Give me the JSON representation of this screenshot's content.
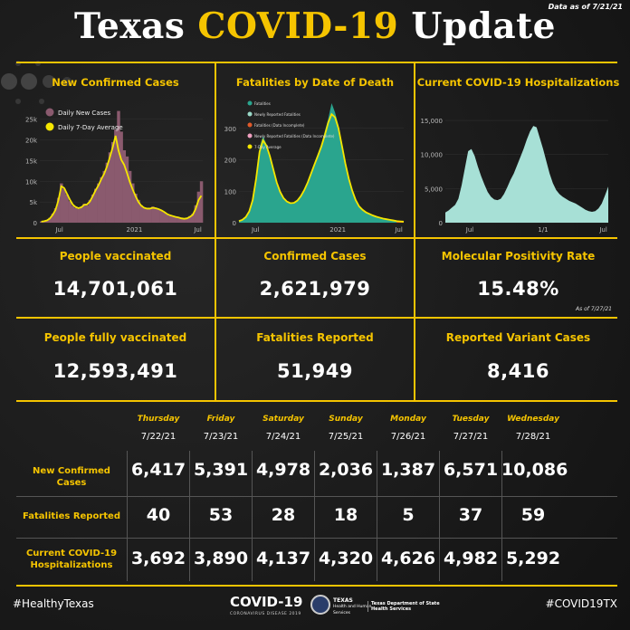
{
  "header": {
    "title_part1": "Texas",
    "title_part2": "COVID-19",
    "title_part3": "Update",
    "data_as_of": "Data as of 7/21/21"
  },
  "charts": [
    {
      "title": "New Confirmed Cases",
      "chart_data": {
        "type": "bar",
        "legend": [
          "Daily New Cases",
          "Daily 7-Day Average"
        ],
        "legend_placement": "top-left",
        "ylim": [
          0,
          28000
        ],
        "yticks": [
          "0",
          "5k",
          "10k",
          "15k",
          "20k",
          "25k"
        ],
        "xticks": [
          "Jul",
          "2021",
          "Jul"
        ],
        "series": [
          {
            "name": "Daily New Cases",
            "color": "#8a5a6e",
            "values": [
              300,
              400,
              600,
              1200,
              2200,
              3500,
              6000,
              9500,
              8200,
              6800,
              5200,
              4100,
              3600,
              3300,
              3900,
              4600,
              4200,
              5500,
              6800,
              8200,
              9500,
              11000,
              12500,
              14500,
              17000,
              19500,
              22500,
              27000,
              22000,
              17500,
              16000,
              12500,
              9500,
              7000,
              5500,
              4200,
              3600,
              3300,
              3500,
              3900,
              3500,
              3200,
              3000,
              2500,
              2000,
              1700,
              1500,
              1400,
              1200,
              1000,
              900,
              1100,
              1600,
              2200,
              4200,
              7500,
              10000
            ]
          },
          {
            "name": "Daily 7-Day Average",
            "color": "#f5e600",
            "values": [
              250,
              350,
              550,
              1000,
              1900,
              3100,
              5400,
              8800,
              8400,
              7000,
              5600,
              4400,
              3800,
              3500,
              3700,
              4300,
              4400,
              5100,
              6400,
              7800,
              9000,
              10500,
              11800,
              13600,
              15800,
              18200,
              21000,
              17500,
              15200,
              14000,
              12000,
              9800,
              8000,
              6400,
              5000,
              4100,
              3600,
              3400,
              3400,
              3600,
              3500,
              3300,
              3000,
              2600,
              2100,
              1800,
              1600,
              1400,
              1250,
              1050,
              950,
              1050,
              1400,
              1900,
              3300,
              5400,
              6500
            ]
          }
        ]
      }
    },
    {
      "title": "Fatalities by Date of Death",
      "chart_data": {
        "type": "area",
        "legend": [
          "Fatalities",
          "Newly Reported Fatalities",
          "Fatalities (Data Incomplete)",
          "Newly Reported Fatalities (Data Incomplete)",
          "7-Day Average"
        ],
        "legend_colors": [
          "#2aa58e",
          "#9ad9c8",
          "#e05a2a",
          "#f0a0c0",
          "#f5e600"
        ],
        "legend_placement": "top-left",
        "ylim": [
          0,
          380
        ],
        "yticks": [
          "0",
          "100",
          "200",
          "300"
        ],
        "xticks": [
          "Jul",
          "2021",
          "Jul"
        ],
        "series": [
          {
            "name": "Fatalities",
            "color": "#2aa58e",
            "values": [
              5,
              10,
              20,
              40,
              80,
              150,
              240,
              275,
              250,
              215,
              170,
              125,
              95,
              75,
              65,
              60,
              62,
              70,
              85,
              105,
              130,
              160,
              190,
              220,
              250,
              290,
              330,
              380,
              350,
              310,
              250,
              190,
              140,
              100,
              70,
              50,
              40,
              32,
              27,
              22,
              18,
              15,
              12,
              10,
              8,
              6,
              5,
              3,
              2
            ]
          },
          {
            "name": "7-Day Average",
            "color": "#f5e600",
            "values": [
              5,
              9,
              18,
              36,
              72,
              140,
              225,
              262,
              245,
              212,
              170,
              128,
              98,
              78,
              67,
              62,
              63,
              70,
              84,
              103,
              127,
              156,
              185,
              213,
              242,
              278,
              318,
              345,
              335,
              300,
              245,
              188,
              140,
              102,
              72,
              52,
              41,
              33,
              28,
              23,
              19,
              16,
              13,
              11,
              9,
              7,
              5,
              4,
              3
            ]
          }
        ]
      }
    },
    {
      "title": "Current COVID-19 Hospitalizations",
      "chart_data": {
        "type": "area",
        "color": "#a7e0d6",
        "ylim": [
          0,
          17000
        ],
        "yticks": [
          "0",
          "5,000",
          "10,000",
          "15,000"
        ],
        "xticks": [
          "Jul",
          "1/1",
          "Jul"
        ],
        "values": [
          1500,
          1800,
          2200,
          2600,
          3500,
          5500,
          8000,
          10500,
          10800,
          9800,
          8200,
          6800,
          5600,
          4500,
          3800,
          3400,
          3300,
          3500,
          4200,
          5200,
          6300,
          7200,
          8400,
          9600,
          10800,
          12200,
          13400,
          14200,
          14000,
          12400,
          10800,
          9000,
          7200,
          5800,
          4800,
          4200,
          3800,
          3500,
          3200,
          3000,
          2800,
          2500,
          2200,
          1900,
          1700,
          1600,
          1700,
          2100,
          2800,
          4000,
          5300
        ]
      }
    }
  ],
  "stats": [
    {
      "label": "People vaccinated",
      "value": "14,701,061"
    },
    {
      "label": "Confirmed Cases",
      "value": "2,621,979"
    },
    {
      "label": "Molecular Positivity Rate",
      "value": "15.48%",
      "note": "As of 7/27/21"
    },
    {
      "label": "People fully vaccinated",
      "value": "12,593,491"
    },
    {
      "label": "Fatalities Reported",
      "value": "51,949"
    },
    {
      "label": "Reported Variant Cases",
      "value": "8,416"
    }
  ],
  "table": {
    "days": [
      "Thursday",
      "Friday",
      "Saturday",
      "Sunday",
      "Monday",
      "Tuesday",
      "Wednesday"
    ],
    "dates": [
      "7/22/21",
      "7/23/21",
      "7/24/21",
      "7/25/21",
      "7/26/21",
      "7/27/21",
      "7/28/21"
    ],
    "rows": [
      {
        "label_line1": "New Confirmed Cases",
        "label_line2": "",
        "values": [
          "6,417",
          "5,391",
          "4,978",
          "2,036",
          "1,387",
          "6,571",
          "10,086"
        ]
      },
      {
        "label_line1": "Fatalities Reported",
        "label_line2": "",
        "values": [
          "40",
          "53",
          "28",
          "18",
          "5",
          "37",
          "59"
        ]
      },
      {
        "label_line1": "Current COVID-19",
        "label_line2": "Hospitalizations",
        "values": [
          "3,692",
          "3,890",
          "4,137",
          "4,320",
          "4,626",
          "4,982",
          "5,292"
        ]
      }
    ]
  },
  "footer": {
    "left_tag": "#HealthyTexas",
    "logo": "COVID-19",
    "logo_sub": "CORONAVIRUS DISEASE 2019",
    "agency_line1": "TEXAS",
    "agency_line2": "Health and Human",
    "agency_line3": "Services",
    "dept_line1": "Texas Department of State",
    "dept_line2": "Health Services",
    "right_tag": "#COVID19TX"
  }
}
